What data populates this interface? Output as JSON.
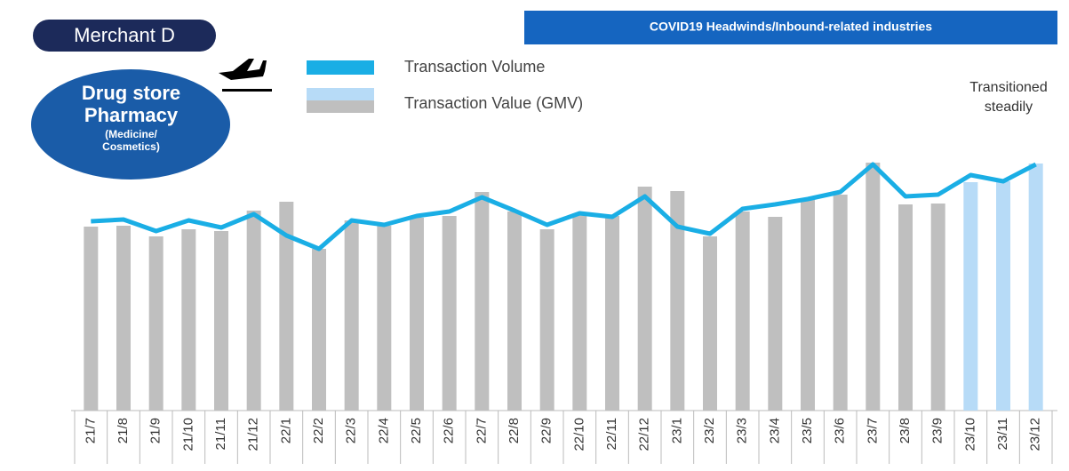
{
  "chart_data": {
    "type": "bar_line",
    "badge": "Merchant D",
    "industry": "Drug store Pharmacy",
    "industry_detail": "(Medicine/ Cosmetics)",
    "banner": "COVID19 Headwinds/Inbound-related industries",
    "annotation": "Transitioned steadily",
    "categories": [
      "21/7",
      "21/8",
      "21/9",
      "21/10",
      "21/11",
      "21/12",
      "22/1",
      "22/2",
      "22/3",
      "22/4",
      "22/5",
      "22/6",
      "22/7",
      "22/8",
      "22/9",
      "22/10",
      "22/11",
      "22/12",
      "23/1",
      "23/2",
      "23/3",
      "23/4",
      "23/5",
      "23/6",
      "23/7",
      "23/8",
      "23/9",
      "23/10",
      "23/11",
      "23/12"
    ],
    "ylim": [
      0,
      300
    ],
    "series": [
      {
        "name": "Transaction Volume",
        "kind": "line",
        "color": "#1aaee5",
        "values": [
          213,
          215,
          202,
          214,
          206,
          221,
          197,
          182,
          214,
          209,
          219,
          224,
          240,
          225,
          209,
          222,
          218,
          241,
          207,
          199,
          227,
          232,
          238,
          246,
          277,
          241,
          243,
          265,
          258,
          277
        ]
      },
      {
        "name": "Transaction Value (GMV)",
        "kind": "bar",
        "color": "#bfbfbf",
        "highlight_color": "#b7dbf7",
        "colors": [
          "#bfbfbf",
          "#bfbfbf",
          "#bfbfbf",
          "#bfbfbf",
          "#bfbfbf",
          "#bfbfbf",
          "#bfbfbf",
          "#bfbfbf",
          "#bfbfbf",
          "#bfbfbf",
          "#bfbfbf",
          "#bfbfbf",
          "#bfbfbf",
          "#bfbfbf",
          "#bfbfbf",
          "#bfbfbf",
          "#bfbfbf",
          "#bfbfbf",
          "#bfbfbf",
          "#bfbfbf",
          "#bfbfbf",
          "#bfbfbf",
          "#bfbfbf",
          "#bfbfbf",
          "#bfbfbf",
          "#bfbfbf",
          "#bfbfbf",
          "#b7dbf7",
          "#b7dbf7",
          "#b7dbf7"
        ],
        "values": [
          207,
          208,
          196,
          204,
          202,
          225,
          235,
          182,
          214,
          208,
          217,
          219,
          246,
          224,
          204,
          222,
          219,
          252,
          247,
          196,
          224,
          218,
          237,
          243,
          279,
          232,
          233,
          257,
          258,
          278
        ]
      }
    ]
  }
}
